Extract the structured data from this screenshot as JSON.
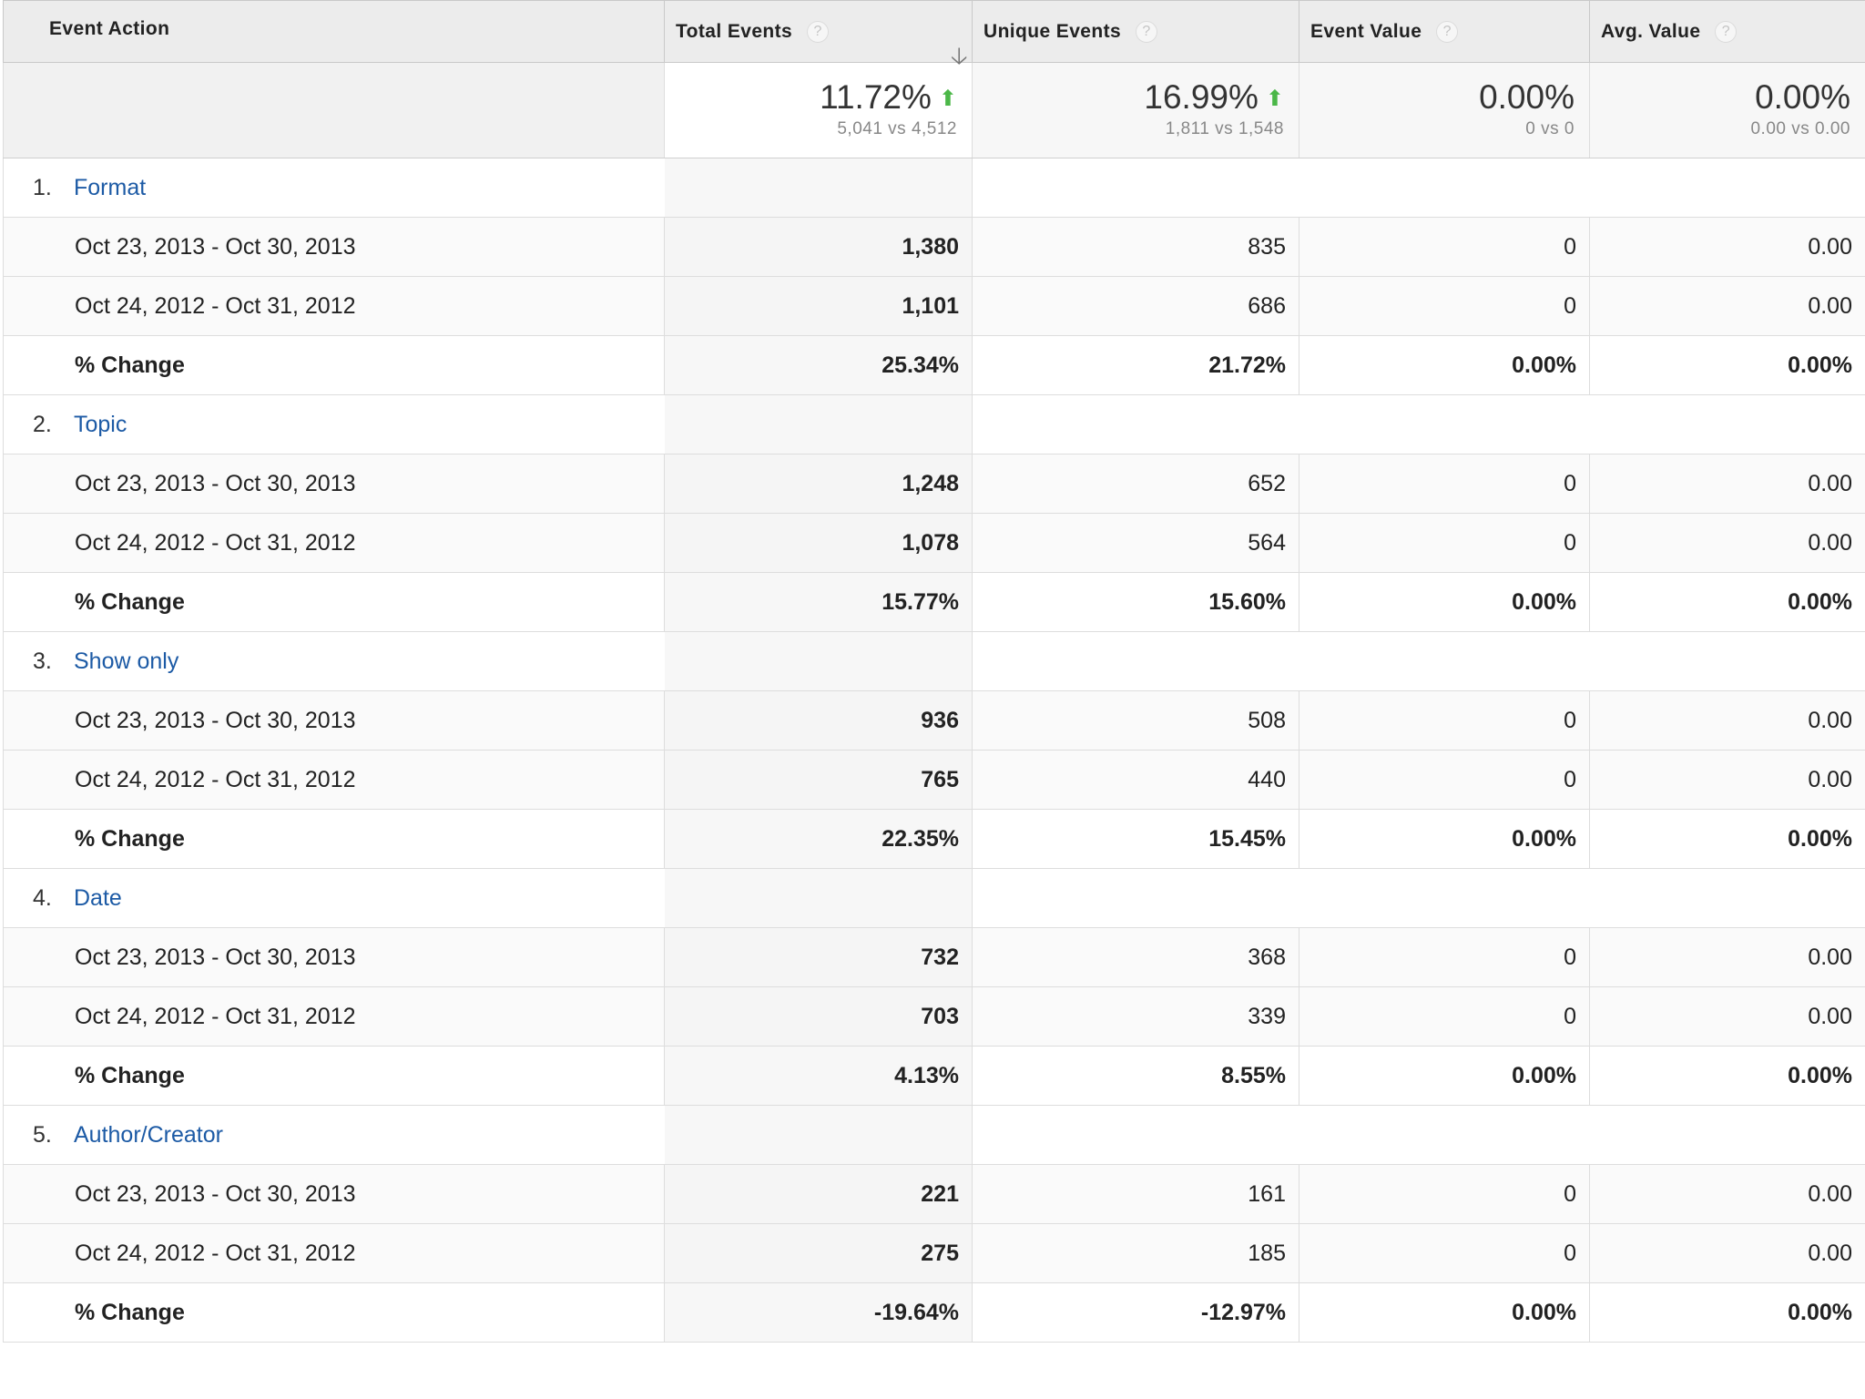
{
  "columns": {
    "event_action": "Event Action",
    "total_events": "Total Events",
    "unique_events": "Unique Events",
    "event_value": "Event Value",
    "avg_value": "Avg. Value",
    "help_glyph": "?",
    "sort_glyph": "🡣"
  },
  "summary": {
    "total_events": {
      "pct": "11.72%",
      "detail": "5,041 vs 4,512"
    },
    "unique_events": {
      "pct": "16.99%",
      "detail": "1,811 vs 1,548"
    },
    "event_value": {
      "pct": "0.00%",
      "detail": "0 vs 0"
    },
    "avg_value": {
      "pct": "0.00%",
      "detail": "0.00 vs 0.00"
    },
    "up_arrow": "⬆"
  },
  "rows": [
    {
      "index": "1.",
      "name": "Format",
      "r1": {
        "range": "Oct 23, 2013 - Oct 30, 2013",
        "total": "1,380",
        "unique": "835",
        "value": "0",
        "avg": "0.00"
      },
      "r2": {
        "range": "Oct 24, 2012 - Oct 31, 2012",
        "total": "1,101",
        "unique": "686",
        "value": "0",
        "avg": "0.00"
      },
      "change": {
        "label": "% Change",
        "total": "25.34%",
        "unique": "21.72%",
        "value": "0.00%",
        "avg": "0.00%"
      }
    },
    {
      "index": "2.",
      "name": "Topic",
      "r1": {
        "range": "Oct 23, 2013 - Oct 30, 2013",
        "total": "1,248",
        "unique": "652",
        "value": "0",
        "avg": "0.00"
      },
      "r2": {
        "range": "Oct 24, 2012 - Oct 31, 2012",
        "total": "1,078",
        "unique": "564",
        "value": "0",
        "avg": "0.00"
      },
      "change": {
        "label": "% Change",
        "total": "15.77%",
        "unique": "15.60%",
        "value": "0.00%",
        "avg": "0.00%"
      }
    },
    {
      "index": "3.",
      "name": "Show only",
      "r1": {
        "range": "Oct 23, 2013 - Oct 30, 2013",
        "total": "936",
        "unique": "508",
        "value": "0",
        "avg": "0.00"
      },
      "r2": {
        "range": "Oct 24, 2012 - Oct 31, 2012",
        "total": "765",
        "unique": "440",
        "value": "0",
        "avg": "0.00"
      },
      "change": {
        "label": "% Change",
        "total": "22.35%",
        "unique": "15.45%",
        "value": "0.00%",
        "avg": "0.00%"
      }
    },
    {
      "index": "4.",
      "name": "Date",
      "r1": {
        "range": "Oct 23, 2013 - Oct 30, 2013",
        "total": "732",
        "unique": "368",
        "value": "0",
        "avg": "0.00"
      },
      "r2": {
        "range": "Oct 24, 2012 - Oct 31, 2012",
        "total": "703",
        "unique": "339",
        "value": "0",
        "avg": "0.00"
      },
      "change": {
        "label": "% Change",
        "total": "4.13%",
        "unique": "8.55%",
        "value": "0.00%",
        "avg": "0.00%"
      }
    },
    {
      "index": "5.",
      "name": "Author/Creator",
      "r1": {
        "range": "Oct 23, 2013 - Oct 30, 2013",
        "total": "221",
        "unique": "161",
        "value": "0",
        "avg": "0.00"
      },
      "r2": {
        "range": "Oct 24, 2012 - Oct 31, 2012",
        "total": "275",
        "unique": "185",
        "value": "0",
        "avg": "0.00"
      },
      "change": {
        "label": "% Change",
        "total": "-19.64%",
        "unique": "-12.97%",
        "value": "0.00%",
        "avg": "0.00%"
      }
    }
  ],
  "colors": {
    "link": "#1c5aa5",
    "up_arrow": "#4bb748",
    "header_bg": "#ececec"
  }
}
